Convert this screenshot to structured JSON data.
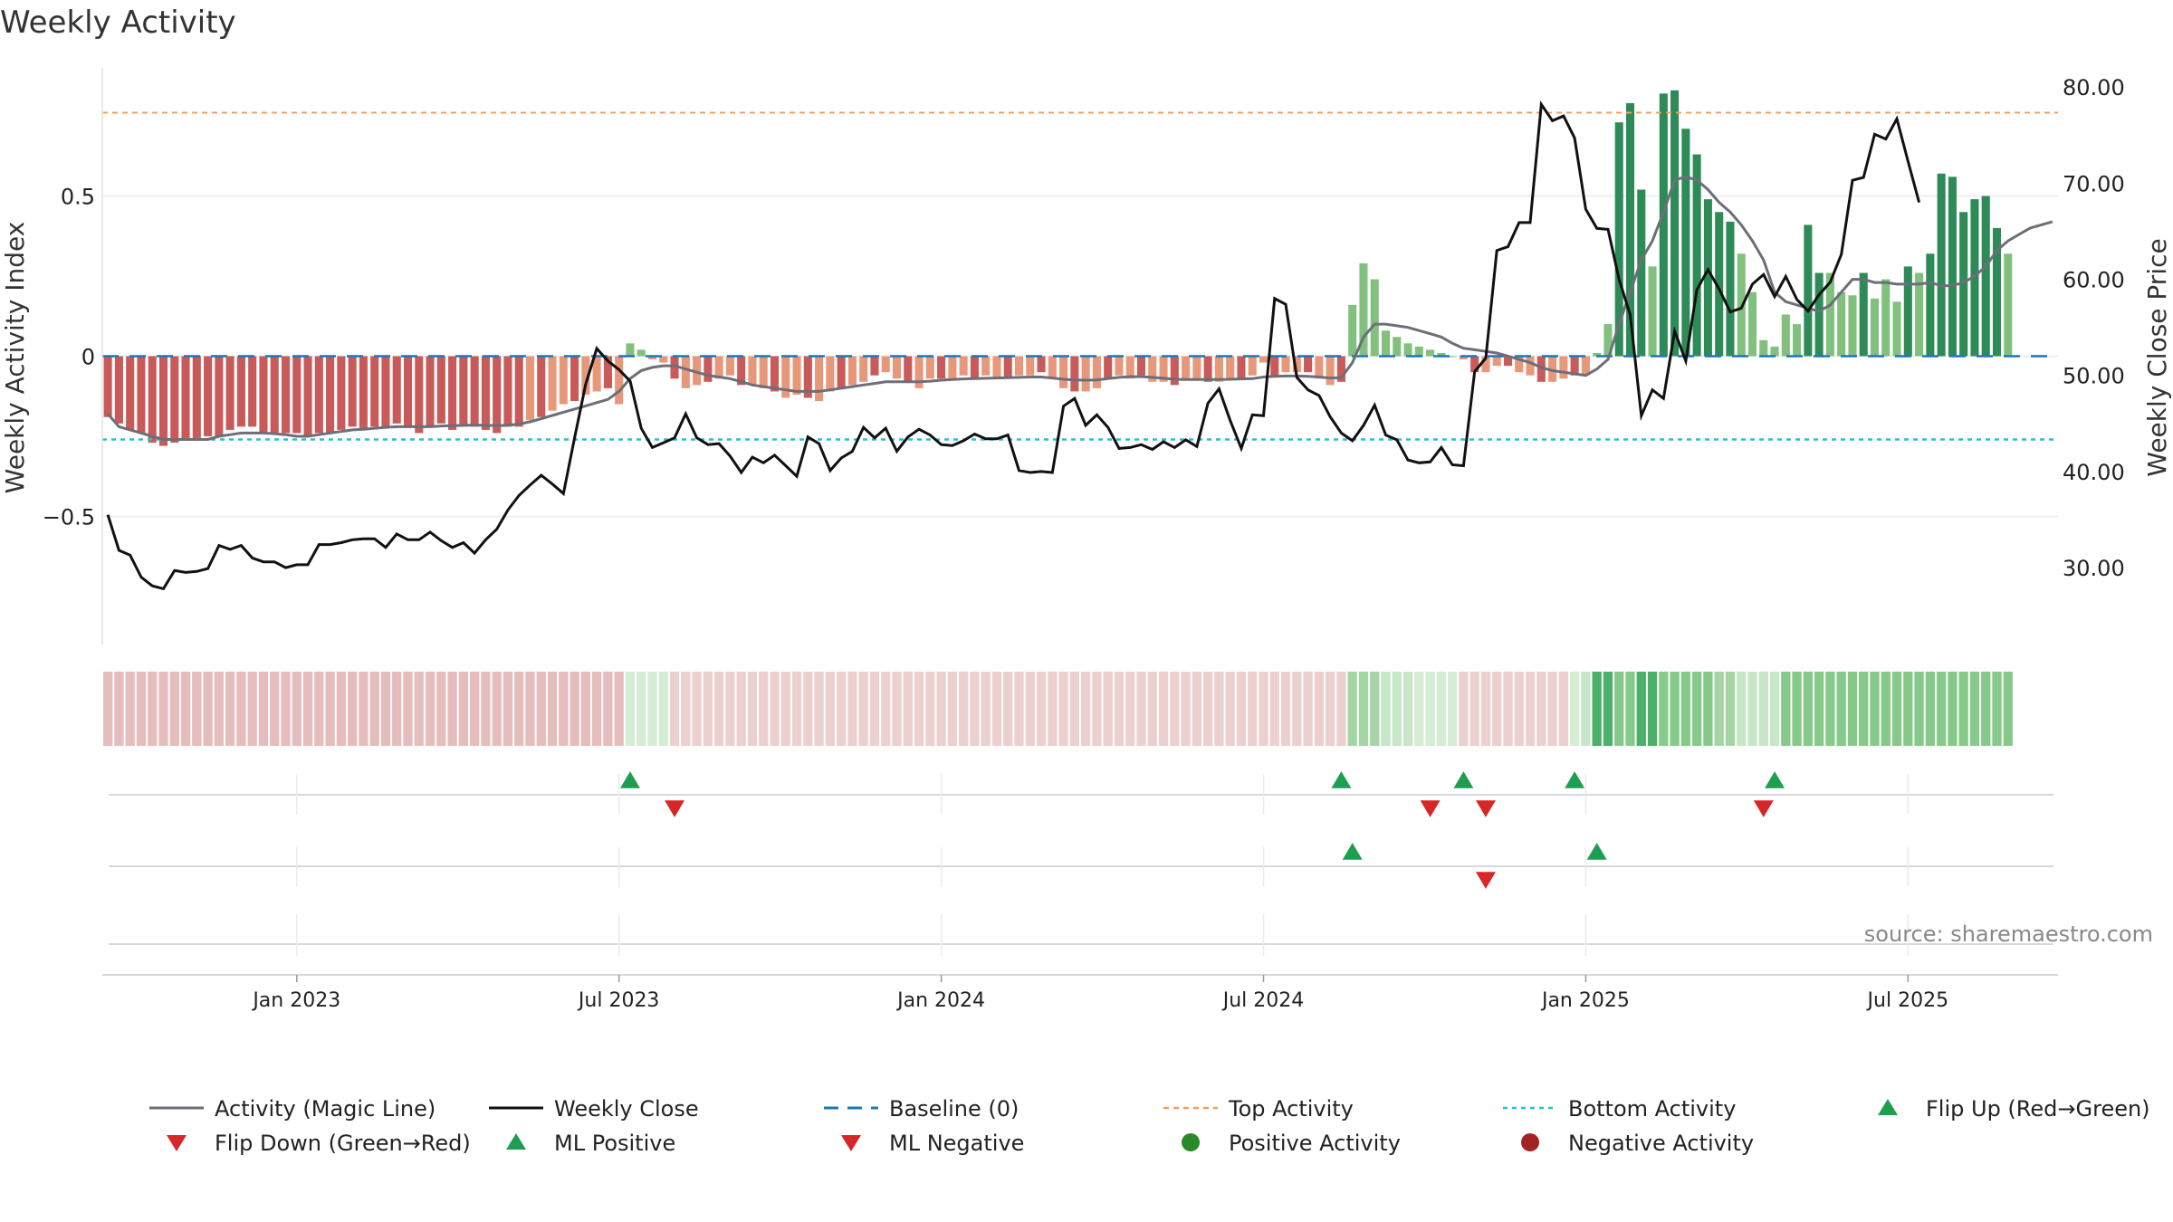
{
  "chart_data": {
    "type": "bar+line",
    "title": "Weekly Activity",
    "ylabel_left": "Weekly Activity Index",
    "ylabel_right": "Weekly Close Price",
    "ylim_left": [
      -0.9,
      0.9
    ],
    "ylim_right": [
      22,
      82
    ],
    "left_ticks": [
      {
        "v": 0.5,
        "label": "0.5"
      },
      {
        "v": 0,
        "label": "0"
      },
      {
        "v": -0.5,
        "label": "−0.5"
      }
    ],
    "right_ticks": [
      {
        "v": 80,
        "label": "80.00"
      },
      {
        "v": 70,
        "label": "70.00"
      },
      {
        "v": 60,
        "label": "60.00"
      },
      {
        "v": 50,
        "label": "50.00"
      },
      {
        "v": 40,
        "label": "40.00"
      },
      {
        "v": 30,
        "label": "30.00"
      }
    ],
    "x_ticks": [
      {
        "i": 17,
        "label": "Jan 2023"
      },
      {
        "i": 46,
        "label": "Jul 2023"
      },
      {
        "i": 75,
        "label": "Jan 2024"
      },
      {
        "i": 104,
        "label": "Jul 2024"
      },
      {
        "i": 133,
        "label": "Jan 2025"
      },
      {
        "i": 162,
        "label": "Jul 2025"
      }
    ],
    "x_range_weeks": [
      -0.5,
      175.5
    ],
    "top_activity": 0.76,
    "bottom_activity": -0.26,
    "baseline": 0,
    "activity": [
      -0.19,
      -0.21,
      -0.23,
      -0.24,
      -0.27,
      -0.28,
      -0.27,
      -0.26,
      -0.26,
      -0.25,
      -0.25,
      -0.23,
      -0.22,
      -0.22,
      -0.24,
      -0.24,
      -0.24,
      -0.24,
      -0.25,
      -0.24,
      -0.24,
      -0.23,
      -0.22,
      -0.23,
      -0.22,
      -0.22,
      -0.21,
      -0.22,
      -0.24,
      -0.22,
      -0.21,
      -0.23,
      -0.22,
      -0.22,
      -0.23,
      -0.24,
      -0.22,
      -0.22,
      -0.2,
      -0.19,
      -0.17,
      -0.15,
      -0.14,
      -0.12,
      -0.11,
      -0.1,
      -0.15,
      0.04,
      0.02,
      -0.01,
      -0.02,
      -0.07,
      -0.1,
      -0.09,
      -0.08,
      -0.07,
      -0.06,
      -0.09,
      -0.09,
      -0.1,
      -0.11,
      -0.13,
      -0.12,
      -0.13,
      -0.14,
      -0.11,
      -0.1,
      -0.09,
      -0.08,
      -0.06,
      -0.05,
      -0.07,
      -0.08,
      -0.1,
      -0.07,
      -0.07,
      -0.07,
      -0.06,
      -0.07,
      -0.06,
      -0.07,
      -0.07,
      -0.06,
      -0.06,
      -0.05,
      -0.07,
      -0.1,
      -0.11,
      -0.11,
      -0.1,
      -0.07,
      -0.06,
      -0.07,
      -0.06,
      -0.08,
      -0.08,
      -0.09,
      -0.07,
      -0.07,
      -0.08,
      -0.08,
      -0.07,
      -0.07,
      -0.06,
      -0.02,
      -0.06,
      -0.05,
      -0.05,
      -0.05,
      -0.07,
      -0.09,
      -0.08,
      0.16,
      0.29,
      0.24,
      0.08,
      0.06,
      0.04,
      0.03,
      0.02,
      0.01,
      0,
      -0.01,
      -0.05,
      -0.05,
      -0.03,
      -0.03,
      -0.05,
      -0.06,
      -0.08,
      -0.08,
      -0.07,
      -0.06,
      -0.06,
      0.01,
      0.1,
      0.73,
      0.79,
      0.52,
      0.28,
      0.82,
      0.83,
      0.71,
      0.63,
      0.49,
      0.45,
      0.42,
      0.32,
      0.2,
      0.05,
      0.03,
      0.13,
      0.1,
      0.41,
      0.26,
      0.26,
      0.2,
      0.19,
      0.26,
      0.18,
      0.24,
      0.17,
      0.28,
      0.26,
      0.32,
      0.57,
      0.56,
      0.45,
      0.49,
      0.5,
      0.4,
      0.32
    ],
    "magic_line": [
      -0.18,
      -0.22,
      -0.23,
      -0.24,
      -0.25,
      -0.26,
      -0.26,
      -0.26,
      -0.26,
      -0.26,
      -0.25,
      -0.245,
      -0.24,
      -0.24,
      -0.24,
      -0.242,
      -0.245,
      -0.25,
      -0.25,
      -0.245,
      -0.24,
      -0.235,
      -0.23,
      -0.228,
      -0.225,
      -0.222,
      -0.22,
      -0.22,
      -0.22,
      -0.22,
      -0.218,
      -0.217,
      -0.216,
      -0.215,
      -0.216,
      -0.217,
      -0.216,
      -0.212,
      -0.205,
      -0.195,
      -0.185,
      -0.175,
      -0.165,
      -0.155,
      -0.145,
      -0.135,
      -0.11,
      -0.07,
      -0.045,
      -0.035,
      -0.03,
      -0.03,
      -0.04,
      -0.05,
      -0.06,
      -0.065,
      -0.07,
      -0.08,
      -0.09,
      -0.095,
      -0.1,
      -0.105,
      -0.11,
      -0.11,
      -0.11,
      -0.105,
      -0.1,
      -0.095,
      -0.09,
      -0.085,
      -0.08,
      -0.08,
      -0.08,
      -0.08,
      -0.078,
      -0.075,
      -0.073,
      -0.071,
      -0.07,
      -0.069,
      -0.068,
      -0.067,
      -0.066,
      -0.065,
      -0.065,
      -0.068,
      -0.072,
      -0.074,
      -0.075,
      -0.074,
      -0.07,
      -0.066,
      -0.064,
      -0.064,
      -0.066,
      -0.069,
      -0.072,
      -0.073,
      -0.073,
      -0.073,
      -0.073,
      -0.072,
      -0.071,
      -0.07,
      -0.065,
      -0.063,
      -0.062,
      -0.062,
      -0.063,
      -0.065,
      -0.068,
      -0.067,
      -0.02,
      0.06,
      0.1,
      0.1,
      0.095,
      0.09,
      0.08,
      0.07,
      0.06,
      0.04,
      0.025,
      0.02,
      0.015,
      0.01,
      0,
      -0.01,
      -0.02,
      -0.035,
      -0.045,
      -0.05,
      -0.055,
      -0.06,
      -0.04,
      -0.01,
      0.1,
      0.2,
      0.3,
      0.36,
      0.45,
      0.55,
      0.56,
      0.55,
      0.52,
      0.48,
      0.45,
      0.41,
      0.36,
      0.3,
      0.2,
      0.17,
      0.16,
      0.15,
      0.14,
      0.16,
      0.2,
      0.24,
      0.24,
      0.23,
      0.23,
      0.225,
      0.225,
      0.225,
      0.23,
      0.22,
      0.22,
      0.23,
      0.25,
      0.28,
      0.33,
      0.36,
      0.38,
      0.4,
      0.41,
      0.42
    ],
    "weekly_close": [
      35.5,
      31.8,
      31.3,
      29,
      28.1,
      27.8,
      29.7,
      29.5,
      29.6,
      29.9,
      32.3,
      31.9,
      32.3,
      31,
      30.6,
      30.6,
      30,
      30.3,
      30.3,
      32.4,
      32.4,
      32.6,
      32.9,
      33,
      33,
      32.1,
      33.5,
      32.9,
      32.9,
      33.7,
      32.8,
      32.1,
      32.6,
      31.5,
      32.9,
      34,
      36,
      37.5,
      38.6,
      39.6,
      38.7,
      37.7,
      43.5,
      49.1,
      52.8,
      51.5,
      50.6,
      49.4,
      44.5,
      42.5,
      43,
      43.5,
      46,
      43.5,
      42.8,
      42.9,
      41.6,
      39.9,
      41.5,
      40.9,
      41.7,
      40.6,
      39.5,
      43.6,
      42.9,
      40.1,
      41.4,
      42.1,
      44.6,
      43.5,
      44.5,
      42.1,
      43.6,
      44.4,
      43.8,
      42.8,
      42.7,
      43.2,
      43.9,
      43.4,
      43.4,
      43.8,
      40.1,
      39.9,
      40,
      39.9,
      46.8,
      47.6,
      44.8,
      45.9,
      44.6,
      42.4,
      42.5,
      42.8,
      42.3,
      43.1,
      42.5,
      43.3,
      42.6,
      47.1,
      48.6,
      45.3,
      42.4,
      45.9,
      45.8,
      58,
      57.4,
      49.8,
      48.5,
      47.9,
      45.7,
      44,
      43.2,
      44.8,
      46.9,
      43.8,
      43.3,
      41.2,
      40.9,
      41,
      42.5,
      40.7,
      40.6,
      50.4,
      51.8,
      63,
      63.4,
      65.9,
      65.9,
      78.2,
      76.5,
      77,
      74.7,
      67.3,
      65.3,
      65.2,
      60,
      56.3,
      45.8,
      48.5,
      47.6,
      54.6,
      51.5,
      58.9,
      61,
      59,
      56.6,
      57,
      59.5,
      60.5,
      58.2,
      60.3,
      57.9,
      56.7,
      58.4,
      59.7,
      62.6,
      70.3,
      70.6,
      75.1,
      74.6,
      76.7,
      72.3,
      68
    ],
    "heat_colors": [
      "#e6bdbd",
      "#e6bdbd",
      "#e6bdbd",
      "#e6bdbd",
      "#e6bdbd",
      "#e6bdbd",
      "#e6bdbd",
      "#e6bdbd",
      "#e6bdbd",
      "#e6bdbd",
      "#e6bdbd",
      "#e6bdbd",
      "#e6bdbd",
      "#e6bdbd",
      "#e6bdbd",
      "#e6bdbd",
      "#e6bdbd",
      "#e6bdbd",
      "#e6bdbd",
      "#e6bdbd",
      "#e6bdbd",
      "#e6bdbd",
      "#e6bdbd",
      "#e6bdbd",
      "#e6bdbd",
      "#e6bdbd",
      "#e6bdbd",
      "#e6bdbd",
      "#e6bdbd",
      "#e6bdbd",
      "#e6bdbd",
      "#e6bdbd",
      "#e6bdbd",
      "#e6bdbd",
      "#e6bdbd",
      "#e6bdbd",
      "#e6bdbd",
      "#e6bdbd",
      "#e6bdbd",
      "#e6bdbd",
      "#e6bdbd",
      "#e6bdbd",
      "#e6bdbd",
      "#e6bdbd",
      "#e6bdbd",
      "#e6bdbd",
      "#e6bdbd",
      "#d5ecd5",
      "#d5ecd5",
      "#d5ecd5",
      "#d5ecd5",
      "#ecd0d0",
      "#ecd0d0",
      "#ecd0d0",
      "#ecd0d0",
      "#ecd0d0",
      "#ecd0d0",
      "#ecd0d0",
      "#ecd0d0",
      "#ecd0d0",
      "#ecd0d0",
      "#ecd0d0",
      "#ecd0d0",
      "#ecd0d0",
      "#ecd0d0",
      "#ecd0d0",
      "#ecd0d0",
      "#ecd0d0",
      "#ecd0d0",
      "#ecd0d0",
      "#ecd0d0",
      "#ecd0d0",
      "#ecd0d0",
      "#ecd0d0",
      "#ecd0d0",
      "#ecd0d0",
      "#ecd0d0",
      "#ecd0d0",
      "#ecd0d0",
      "#ecd0d0",
      "#ecd0d0",
      "#ecd0d0",
      "#ecd0d0",
      "#ecd0d0",
      "#ecd0d0",
      "#ecd0d0",
      "#ecd0d0",
      "#ecd0d0",
      "#ecd0d0",
      "#ecd0d0",
      "#ecd0d0",
      "#ecd0d0",
      "#ecd0d0",
      "#ecd0d0",
      "#ecd0d0",
      "#ecd0d0",
      "#ecd0d0",
      "#ecd0d0",
      "#ecd0d0",
      "#ecd0d0",
      "#ecd0d0",
      "#ecd0d0",
      "#ecd0d0",
      "#ecd0d0",
      "#ecd0d0",
      "#ecd0d0",
      "#ecd0d0",
      "#ecd0d0",
      "#ecd0d0",
      "#ecd0d0",
      "#ecd0d0",
      "#ecd0d0",
      "#a5d5a5",
      "#a5d5a5",
      "#a5d5a5",
      "#c8e6c8",
      "#c8e6c8",
      "#c8e6c8",
      "#d5ecd5",
      "#d5ecd5",
      "#d5ecd5",
      "#d5ecd5",
      "#ecd0d0",
      "#ecd0d0",
      "#ecd0d0",
      "#ecd0d0",
      "#ecd0d0",
      "#ecd0d0",
      "#ecd0d0",
      "#ecd0d0",
      "#ecd0d0",
      "#ecd0d0",
      "#d5ecd5",
      "#c8e6c8",
      "#4caf6a",
      "#4caf6a",
      "#86c98a",
      "#86c98a",
      "#4caf6a",
      "#4caf6a",
      "#86c98a",
      "#86c98a",
      "#86c98a",
      "#86c98a",
      "#86c98a",
      "#a5d5a5",
      "#a5d5a5",
      "#c8e6c8",
      "#c8e6c8",
      "#c8e6c8",
      "#c8e6c8",
      "#86c98a",
      "#86c98a",
      "#86c98a",
      "#86c98a",
      "#86c98a",
      "#86c98a",
      "#86c98a",
      "#86c98a",
      "#86c98a",
      "#86c98a",
      "#86c98a",
      "#86c98a",
      "#86c98a",
      "#86c98a",
      "#86c98a",
      "#86c98a",
      "#86c98a",
      "#86c98a",
      "#86c98a",
      "#86c98a",
      "#86c98a"
    ],
    "flip_up_weeks": [
      47,
      111,
      122,
      132,
      150
    ],
    "flip_down_weeks": [
      51,
      119,
      124,
      149
    ],
    "ml_positive_weeks": [
      112,
      134
    ],
    "ml_negative_weeks": [
      124
    ],
    "positive_activity_weeks": [],
    "negative_activity_weeks": [],
    "legend": [
      {
        "key": "magic",
        "label": "Activity (Magic Line)"
      },
      {
        "key": "close",
        "label": "Weekly Close"
      },
      {
        "key": "baseline",
        "label": "Baseline (0)"
      },
      {
        "key": "top",
        "label": "Top Activity"
      },
      {
        "key": "bottom",
        "label": "Bottom Activity"
      },
      {
        "key": "flipup",
        "label": "Flip Up (Red→Green)"
      },
      {
        "key": "flipdown",
        "label": "Flip Down (Green→Red)"
      },
      {
        "key": "mlpos",
        "label": "ML Positive"
      },
      {
        "key": "mlneg",
        "label": "ML Negative"
      },
      {
        "key": "posact",
        "label": "Positive Activity"
      },
      {
        "key": "negact",
        "label": "Negative Activity"
      }
    ],
    "source": "source: sharemaestro.com"
  },
  "colors": {
    "red_dark": "#c85a5a",
    "red_light": "#e8987a",
    "green_dark": "#2e8b57",
    "green_light": "#82c07e",
    "magic_line": "#6e6e78",
    "close_line": "#111111",
    "baseline": "#1f77b4",
    "top_line": "#f0a060",
    "bottom_line": "#22c3d4",
    "marker_green": "#1e9e50",
    "marker_red": "#d62728",
    "pos_dot": "#2a8a2a",
    "neg_dot": "#a52222",
    "grid": "#ececec",
    "text": "#222222",
    "source": "#888888"
  }
}
